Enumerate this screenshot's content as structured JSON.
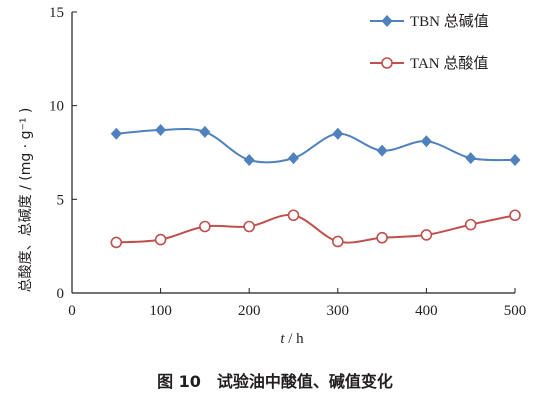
{
  "caption": "图 10　试验油中酸值、碱值变化",
  "chart_data": {
    "type": "line",
    "x": [
      50,
      100,
      150,
      200,
      250,
      300,
      350,
      400,
      450,
      500
    ],
    "series": [
      {
        "name": "TBN 总碱值",
        "values": [
          8.5,
          8.7,
          8.6,
          7.1,
          7.2,
          8.5,
          7.6,
          8.1,
          7.2,
          7.1
        ],
        "color": "#4f81bd",
        "marker": "diamond"
      },
      {
        "name": "TAN 总酸值",
        "values": [
          2.7,
          2.85,
          3.55,
          3.55,
          4.15,
          2.75,
          2.95,
          3.1,
          3.65,
          4.15
        ],
        "color": "#c0504d",
        "marker": "circle"
      }
    ],
    "xlabel_italic": "t",
    "xlabel_rest": " / h",
    "ylabel": "总酸度、总碱度 / (mg · g⁻¹ )",
    "xlim": [
      0,
      500
    ],
    "ylim": [
      0,
      15
    ],
    "xticks": [
      0,
      100,
      200,
      300,
      400,
      500
    ],
    "yticks": [
      0,
      5,
      10,
      15
    ],
    "grid": false,
    "legend_position": "top-right",
    "smooth": true
  }
}
